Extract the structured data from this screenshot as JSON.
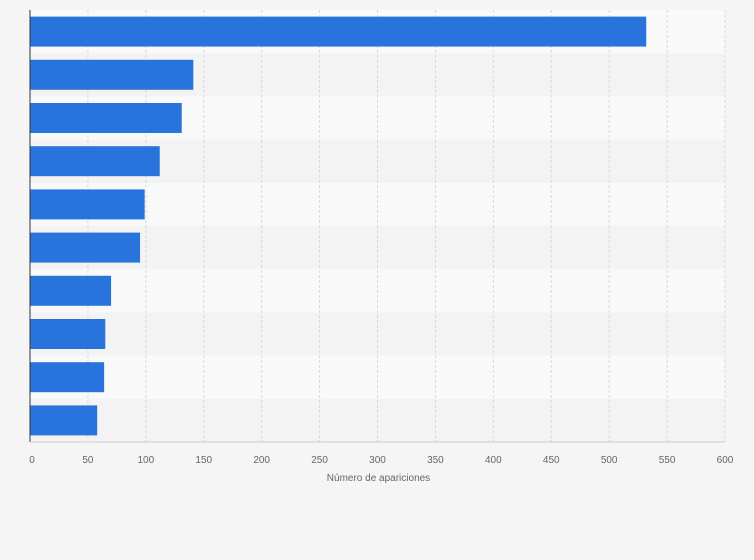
{
  "chart_data": {
    "type": "bar",
    "orientation": "horizontal",
    "categories": [
      "",
      "",
      "",
      "",
      "",
      "",
      "",
      "",
      "",
      ""
    ],
    "values": [
      532,
      141,
      131,
      112,
      99,
      95,
      70,
      65,
      64,
      58
    ],
    "xlabel": "Número de apariciones",
    "ylabel": "",
    "xlim": [
      0,
      600
    ],
    "xticks": [
      0,
      50,
      100,
      150,
      200,
      250,
      300,
      350,
      400,
      450,
      500,
      550,
      600
    ],
    "grid": true,
    "legend": "none"
  },
  "colors": {
    "bar": "#2874dc",
    "band_light": "#f9f9f9",
    "band_dark": "#f3f3f3",
    "gridline": "#d9d9d9",
    "axis": "#333333",
    "page": "#f5f5f5"
  }
}
